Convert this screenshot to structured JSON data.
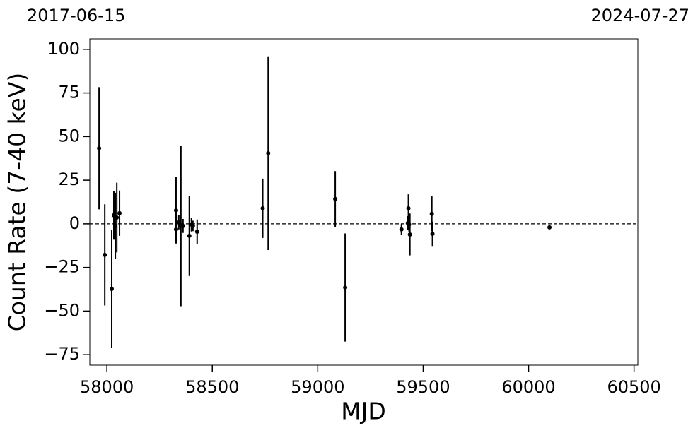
{
  "chart_data": {
    "type": "errorbar",
    "top_labels": [
      "2017-06-15",
      "2024-07-27"
    ],
    "x_label": "MJD",
    "y_label": "Count Rate (7-40 keV)",
    "x": [
      57963,
      57990,
      58023,
      58033,
      58040,
      58047,
      58060,
      58328,
      58328,
      58341,
      58351,
      58361,
      58391,
      58401,
      58408,
      58428,
      58739,
      58765,
      59083,
      59130,
      59397,
      59427,
      59430,
      59433,
      59437,
      59541,
      59544,
      60099
    ],
    "values": [
      43.3,
      -17.8,
      -37.3,
      4.9,
      -1.2,
      3.6,
      6.1,
      7.7,
      -3.2,
      0.8,
      -1.2,
      -1.2,
      -6.9,
      -0.4,
      -1.2,
      -4.5,
      8.9,
      40.5,
      14.2,
      -36.5,
      -3.2,
      0.4,
      8.9,
      -0.4,
      -6.1,
      5.7,
      -5.7,
      -2.0
    ],
    "errors": [
      35,
      29,
      34,
      14,
      19,
      20,
      13,
      19,
      8,
      4,
      46,
      4,
      23,
      4,
      3,
      7,
      17,
      55.5,
      16,
      31,
      3,
      4,
      8,
      4,
      12,
      10,
      7,
      1
    ],
    "color": "#000000",
    "reference_line": 0,
    "xlim": [
      57919,
      60518
    ],
    "ylim": [
      -81,
      106
    ],
    "xticks": [
      58000,
      58500,
      59000,
      59500,
      60000,
      60500
    ],
    "yticks": [
      {
        "value": -75,
        "label": "−75"
      },
      {
        "value": -50,
        "label": "−50"
      },
      {
        "value": -25,
        "label": "−25"
      },
      0,
      25,
      50,
      75,
      100
    ]
  }
}
